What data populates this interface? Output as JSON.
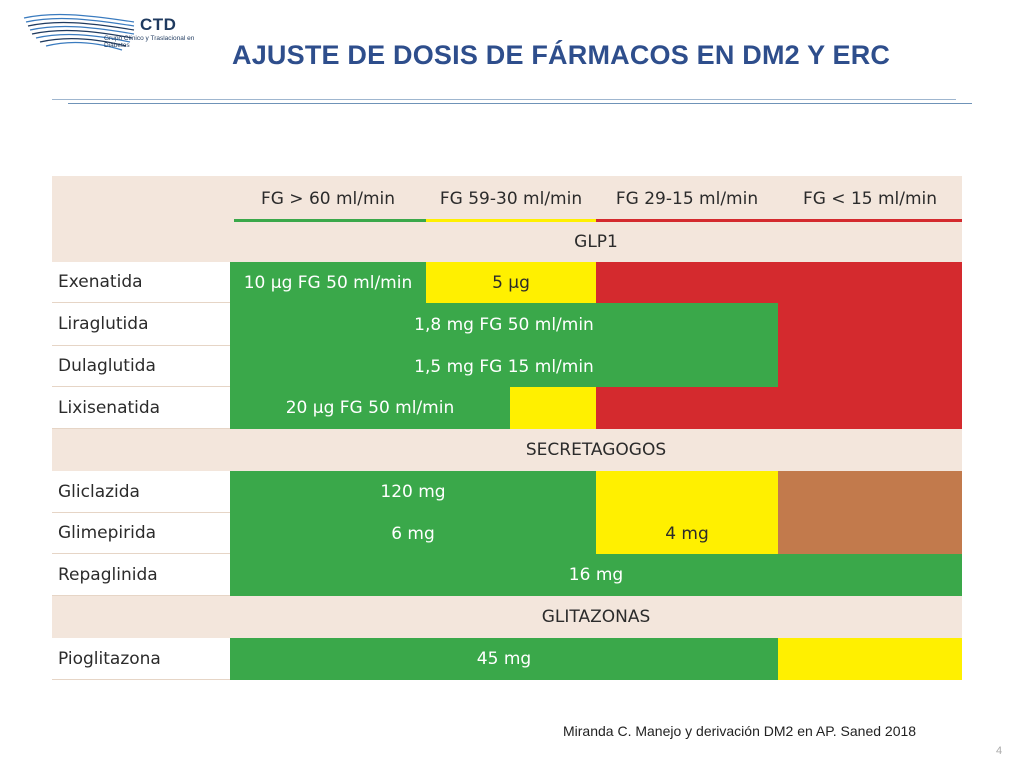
{
  "logo": {
    "name": "CTD",
    "subtitle": "Grupo Clínico y Traslacional en Diabetes",
    "colors": {
      "navy": "#1f3a5f",
      "blue": "#3a7bbf"
    }
  },
  "title": "AJUSTE DE DOSIS DE FÁRMACOS EN DM2 Y ERC",
  "table": {
    "columns": [
      "FG > 60 ml/min",
      "FG 59-30 ml/min",
      "FG 29-15 ml/min",
      "FG < 15 ml/min"
    ],
    "sections": {
      "glp1": "GLP1",
      "secretagogos": "SECRETAGOGOS",
      "glitazonas": "GLITAZONAS"
    },
    "rows": {
      "exenatida": {
        "drug": "Exenatida",
        "c1": "10 µg FG 50 ml/min",
        "c2": "5 µg"
      },
      "liraglutida": {
        "drug": "Liraglutida",
        "c1": "1,8 mg FG 50 ml/min"
      },
      "dulaglutida": {
        "drug": "Dulaglutida",
        "c1": "1,5 mg FG 15 ml/min"
      },
      "lixisenatida": {
        "drug": "Lixisenatida",
        "c1": "20 µg FG 50 ml/min"
      },
      "gliclazida": {
        "drug": "Gliclazida",
        "c1": "120 mg"
      },
      "glimepirida": {
        "drug": "Glimepirida",
        "c1": "6 mg",
        "c2": "4 mg"
      },
      "repaglinida": {
        "drug": "Repaglinida",
        "c1": "16 mg"
      },
      "pioglitazona": {
        "drug": "Pioglitazona",
        "c1": "45 mg"
      }
    },
    "colors": {
      "green": "#3aa84a",
      "yellow": "#fff000",
      "red": "#d42a2e",
      "brown": "#c27a4c"
    }
  },
  "citation": "Miranda C. Manejo y derivación DM2 en AP. Saned 2018",
  "page_number": "4"
}
